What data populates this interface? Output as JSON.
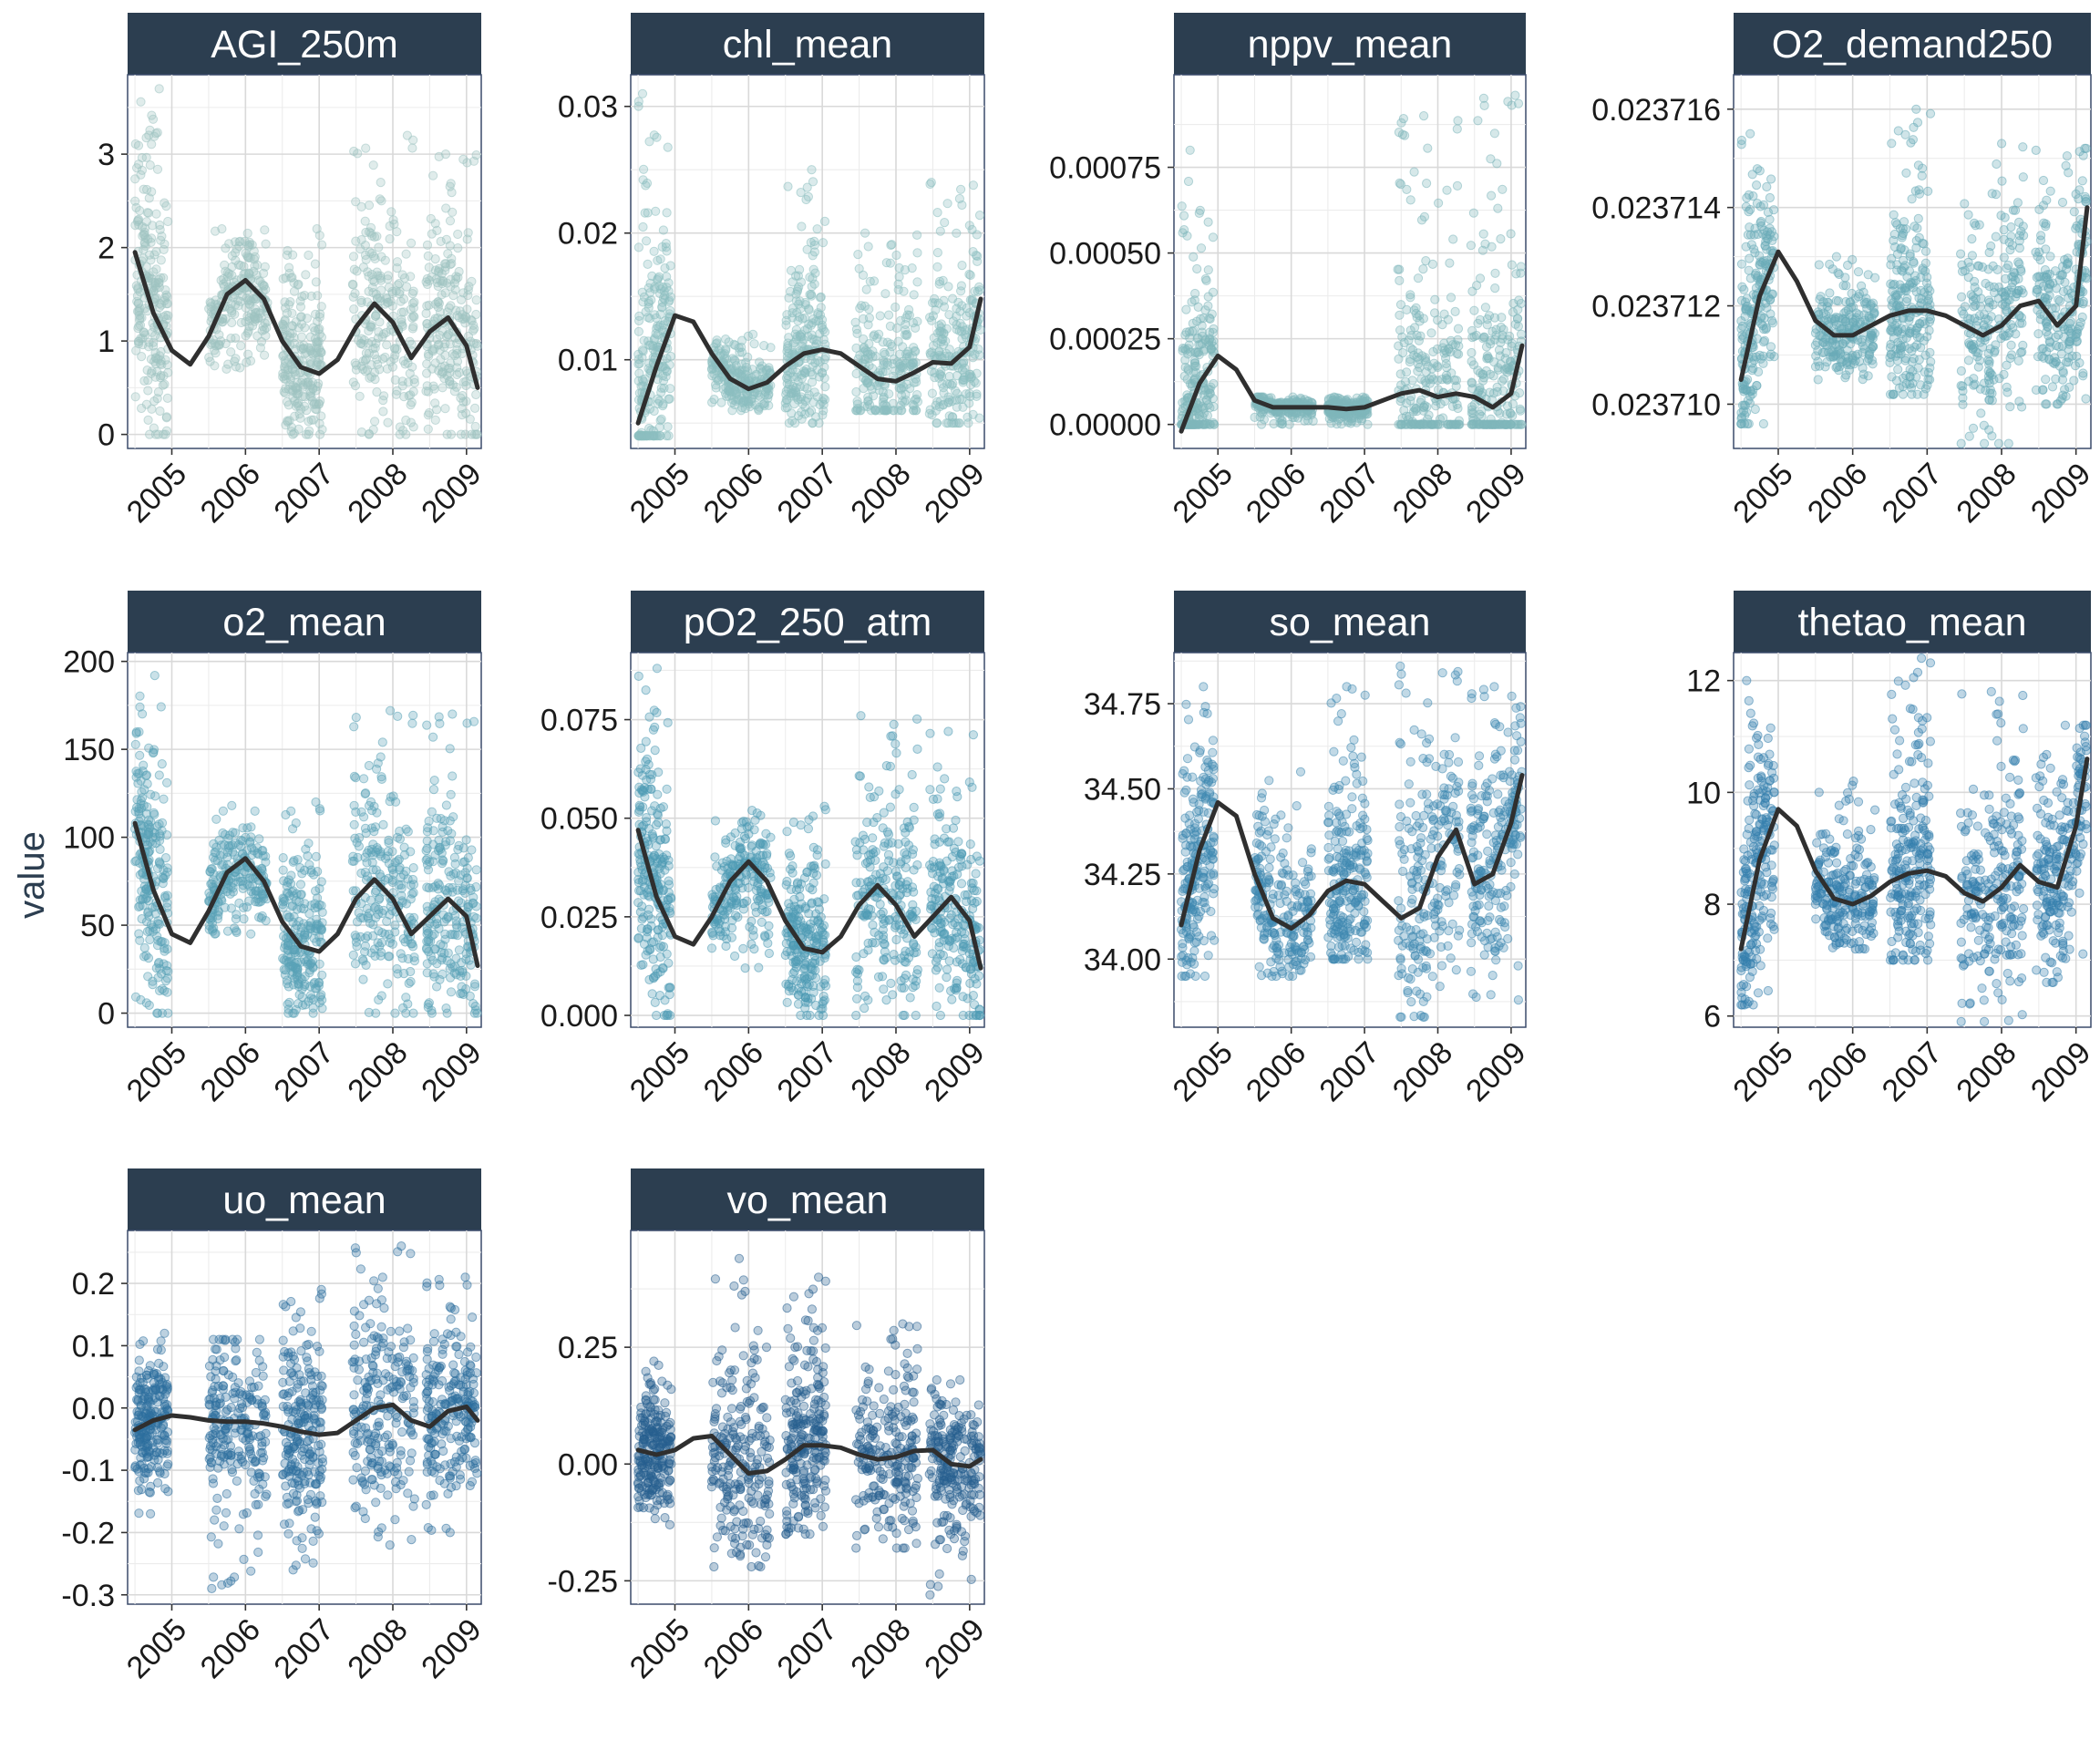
{
  "figure": {
    "y_axis_label": "value",
    "x_tick_labels": [
      "2005",
      "2006",
      "2007",
      "2008",
      "2009"
    ]
  },
  "chart_data": [
    {
      "type": "scatter",
      "title": "AGI_250m",
      "point_color": "#9fc3c1",
      "xlim": [
        2004.4,
        2009.2
      ],
      "ylim": [
        -0.15,
        3.85
      ],
      "y_ticks": [
        0,
        1,
        2,
        3
      ],
      "y_tick_labels": [
        "0",
        "1",
        "2",
        "3"
      ],
      "point_clusters": [
        {
          "x_start": 2004.5,
          "x_end": 2004.95,
          "y_low": 0.0,
          "y_high": 3.7
        },
        {
          "x_start": 2005.5,
          "x_end": 2006.3,
          "y_low": 0.7,
          "y_high": 2.2
        },
        {
          "x_start": 2006.5,
          "x_end": 2007.05,
          "y_low": 0.0,
          "y_high": 2.2
        },
        {
          "x_start": 2007.45,
          "x_end": 2008.3,
          "y_low": 0.0,
          "y_high": 3.2
        },
        {
          "x_start": 2008.45,
          "x_end": 2009.15,
          "y_low": 0.0,
          "y_high": 3.0
        }
      ],
      "smooth": {
        "x": [
          2004.5,
          2004.75,
          2005.0,
          2005.25,
          2005.5,
          2005.75,
          2006.0,
          2006.25,
          2006.5,
          2006.75,
          2007.0,
          2007.25,
          2007.5,
          2007.75,
          2008.0,
          2008.25,
          2008.5,
          2008.75,
          2009.0,
          2009.15
        ],
        "y": [
          1.95,
          1.3,
          0.9,
          0.75,
          1.05,
          1.5,
          1.65,
          1.45,
          1.0,
          0.72,
          0.65,
          0.8,
          1.15,
          1.4,
          1.2,
          0.82,
          1.1,
          1.25,
          0.95,
          0.5
        ]
      }
    },
    {
      "type": "scatter",
      "title": "chl_mean",
      "point_color": "#8cbfc0",
      "xlim": [
        2004.4,
        2009.2
      ],
      "ylim": [
        0.003,
        0.0325
      ],
      "y_ticks": [
        0.01,
        0.02,
        0.03
      ],
      "y_tick_labels": [
        "0.01",
        "0.02",
        "0.03"
      ],
      "point_clusters": [
        {
          "x_start": 2004.5,
          "x_end": 2004.95,
          "y_low": 0.004,
          "y_high": 0.031
        },
        {
          "x_start": 2005.5,
          "x_end": 2006.3,
          "y_low": 0.006,
          "y_high": 0.012
        },
        {
          "x_start": 2006.5,
          "x_end": 2007.05,
          "y_low": 0.005,
          "y_high": 0.025
        },
        {
          "x_start": 2007.45,
          "x_end": 2008.3,
          "y_low": 0.006,
          "y_high": 0.02
        },
        {
          "x_start": 2008.45,
          "x_end": 2009.15,
          "y_low": 0.005,
          "y_high": 0.024
        }
      ],
      "smooth": {
        "x": [
          2004.5,
          2004.75,
          2005.0,
          2005.25,
          2005.5,
          2005.75,
          2006.0,
          2006.25,
          2006.5,
          2006.75,
          2007.0,
          2007.25,
          2007.5,
          2007.75,
          2008.0,
          2008.25,
          2008.5,
          2008.75,
          2009.0,
          2009.15
        ],
        "y": [
          0.005,
          0.0095,
          0.0135,
          0.013,
          0.0105,
          0.0085,
          0.0077,
          0.0082,
          0.0095,
          0.0105,
          0.0108,
          0.0105,
          0.0095,
          0.0085,
          0.0083,
          0.009,
          0.0098,
          0.0097,
          0.011,
          0.0148
        ]
      }
    },
    {
      "type": "scatter",
      "title": "nppv_mean",
      "point_color": "#7fb7bc",
      "xlim": [
        2004.4,
        2009.2
      ],
      "ylim": [
        -7e-05,
        0.00102
      ],
      "y_ticks": [
        0,
        0.00025,
        0.0005,
        0.00075
      ],
      "y_tick_labels": [
        "0.00000",
        "0.00025",
        "0.00050",
        "0.00075"
      ],
      "point_clusters": [
        {
          "x_start": 2004.5,
          "x_end": 2004.95,
          "y_low": 0.0,
          "y_high": 0.0008
        },
        {
          "x_start": 2005.5,
          "x_end": 2006.3,
          "y_low": 0.0,
          "y_high": 8e-05
        },
        {
          "x_start": 2006.5,
          "x_end": 2007.05,
          "y_low": 0.0,
          "y_high": 8e-05
        },
        {
          "x_start": 2007.45,
          "x_end": 2008.3,
          "y_low": 0.0,
          "y_high": 0.0009
        },
        {
          "x_start": 2008.45,
          "x_end": 2009.15,
          "y_low": 0.0,
          "y_high": 0.00096
        }
      ],
      "smooth": {
        "x": [
          2004.5,
          2004.75,
          2005.0,
          2005.25,
          2005.5,
          2005.75,
          2006.0,
          2006.25,
          2006.5,
          2006.75,
          2007.0,
          2007.25,
          2007.5,
          2007.75,
          2008.0,
          2008.25,
          2008.5,
          2008.75,
          2009.0,
          2009.15
        ],
        "y": [
          -2e-05,
          0.00012,
          0.0002,
          0.00016,
          7e-05,
          5e-05,
          5e-05,
          5e-05,
          5e-05,
          4.5e-05,
          5e-05,
          7e-05,
          9e-05,
          0.0001,
          8e-05,
          9e-05,
          8e-05,
          5e-05,
          9e-05,
          0.00023
        ]
      }
    },
    {
      "type": "scatter",
      "title": "O2_demand250",
      "point_color": "#6aabb8",
      "xlim": [
        2004.4,
        2009.2
      ],
      "ylim": [
        0.0237091,
        0.0237167
      ],
      "y_ticks": [
        0.02371,
        0.023712,
        0.023714,
        0.023716
      ],
      "y_tick_labels": [
        "0.023710",
        "0.023712",
        "0.023714",
        "0.023716"
      ],
      "point_clusters": [
        {
          "x_start": 2004.5,
          "x_end": 2004.95,
          "y_low": 0.0237096,
          "y_high": 0.0237155
        },
        {
          "x_start": 2005.5,
          "x_end": 2006.3,
          "y_low": 0.0237105,
          "y_high": 0.023713
        },
        {
          "x_start": 2006.5,
          "x_end": 2007.05,
          "y_low": 0.0237102,
          "y_high": 0.023716
        },
        {
          "x_start": 2007.45,
          "x_end": 2008.3,
          "y_low": 0.0237092,
          "y_high": 0.0237153
        },
        {
          "x_start": 2008.45,
          "x_end": 2009.15,
          "y_low": 0.02371,
          "y_high": 0.0237152
        }
      ],
      "smooth": {
        "x": [
          2004.5,
          2004.75,
          2005.0,
          2005.25,
          2005.5,
          2005.75,
          2006.0,
          2006.25,
          2006.5,
          2006.75,
          2007.0,
          2007.25,
          2007.5,
          2007.75,
          2008.0,
          2008.25,
          2008.5,
          2008.75,
          2009.0,
          2009.15
        ],
        "y": [
          0.0237105,
          0.0237122,
          0.0237131,
          0.0237125,
          0.0237117,
          0.0237114,
          0.0237114,
          0.0237116,
          0.0237118,
          0.0237119,
          0.0237119,
          0.0237118,
          0.0237116,
          0.0237114,
          0.0237116,
          0.023712,
          0.0237121,
          0.0237116,
          0.023712,
          0.023714
        ]
      }
    },
    {
      "type": "scatter",
      "title": "o2_mean",
      "point_color": "#59a3b6",
      "xlim": [
        2004.4,
        2009.2
      ],
      "ylim": [
        -8,
        205
      ],
      "y_ticks": [
        0,
        50,
        100,
        150,
        200
      ],
      "y_tick_labels": [
        "0",
        "50",
        "100",
        "150",
        "200"
      ],
      "point_clusters": [
        {
          "x_start": 2004.5,
          "x_end": 2004.95,
          "y_low": 0,
          "y_high": 192
        },
        {
          "x_start": 2005.5,
          "x_end": 2006.3,
          "y_low": 45,
          "y_high": 118
        },
        {
          "x_start": 2006.5,
          "x_end": 2007.05,
          "y_low": 0,
          "y_high": 120
        },
        {
          "x_start": 2007.45,
          "x_end": 2008.3,
          "y_low": 0,
          "y_high": 172
        },
        {
          "x_start": 2008.45,
          "x_end": 2009.15,
          "y_low": 0,
          "y_high": 170
        }
      ],
      "smooth": {
        "x": [
          2004.5,
          2004.75,
          2005.0,
          2005.25,
          2005.5,
          2005.75,
          2006.0,
          2006.25,
          2006.5,
          2006.75,
          2007.0,
          2007.25,
          2007.5,
          2007.75,
          2008.0,
          2008.25,
          2008.5,
          2008.75,
          2009.0,
          2009.15
        ],
        "y": [
          108,
          70,
          45,
          40,
          58,
          80,
          88,
          75,
          52,
          38,
          35,
          45,
          65,
          76,
          65,
          45,
          55,
          65,
          55,
          27
        ]
      }
    },
    {
      "type": "scatter",
      "title": "pO2_250_atm",
      "point_color": "#4f9ab4",
      "xlim": [
        2004.4,
        2009.2
      ],
      "ylim": [
        -0.003,
        0.092
      ],
      "y_ticks": [
        0,
        0.025,
        0.05,
        0.075
      ],
      "y_tick_labels": [
        "0.000",
        "0.025",
        "0.050",
        "0.075"
      ],
      "point_clusters": [
        {
          "x_start": 2004.5,
          "x_end": 2004.95,
          "y_low": 0.0,
          "y_high": 0.088
        },
        {
          "x_start": 2005.5,
          "x_end": 2006.3,
          "y_low": 0.012,
          "y_high": 0.052
        },
        {
          "x_start": 2006.5,
          "x_end": 2007.05,
          "y_low": 0.0,
          "y_high": 0.053
        },
        {
          "x_start": 2007.45,
          "x_end": 2008.3,
          "y_low": 0.0,
          "y_high": 0.076
        },
        {
          "x_start": 2008.45,
          "x_end": 2009.15,
          "y_low": 0.0,
          "y_high": 0.072
        }
      ],
      "smooth": {
        "x": [
          2004.5,
          2004.75,
          2005.0,
          2005.25,
          2005.5,
          2005.75,
          2006.0,
          2006.25,
          2006.5,
          2006.75,
          2007.0,
          2007.25,
          2007.5,
          2007.75,
          2008.0,
          2008.25,
          2008.5,
          2008.75,
          2009.0,
          2009.15
        ],
        "y": [
          0.047,
          0.03,
          0.02,
          0.018,
          0.025,
          0.034,
          0.039,
          0.034,
          0.024,
          0.017,
          0.016,
          0.02,
          0.028,
          0.033,
          0.028,
          0.02,
          0.025,
          0.03,
          0.024,
          0.012
        ]
      }
    },
    {
      "type": "scatter",
      "title": "so_mean",
      "point_color": "#3f88b0",
      "xlim": [
        2004.4,
        2009.2
      ],
      "ylim": [
        33.8,
        34.9
      ],
      "y_ticks": [
        34.0,
        34.25,
        34.5,
        34.75
      ],
      "y_tick_labels": [
        "34.00",
        "34.25",
        "34.50",
        "34.75"
      ],
      "point_clusters": [
        {
          "x_start": 2004.5,
          "x_end": 2004.95,
          "y_low": 33.95,
          "y_high": 34.8
        },
        {
          "x_start": 2005.5,
          "x_end": 2006.3,
          "y_low": 33.95,
          "y_high": 34.55
        },
        {
          "x_start": 2006.5,
          "x_end": 2007.05,
          "y_low": 34.0,
          "y_high": 34.8
        },
        {
          "x_start": 2007.45,
          "x_end": 2008.3,
          "y_low": 33.83,
          "y_high": 34.86
        },
        {
          "x_start": 2008.45,
          "x_end": 2009.15,
          "y_low": 33.88,
          "y_high": 34.8
        }
      ],
      "smooth": {
        "x": [
          2004.5,
          2004.75,
          2005.0,
          2005.25,
          2005.5,
          2005.75,
          2006.0,
          2006.25,
          2006.5,
          2006.75,
          2007.0,
          2007.25,
          2007.5,
          2007.75,
          2008.0,
          2008.25,
          2008.5,
          2008.75,
          2009.0,
          2009.15
        ],
        "y": [
          34.1,
          34.32,
          34.46,
          34.42,
          34.25,
          34.12,
          34.09,
          34.13,
          34.2,
          34.23,
          34.22,
          34.17,
          34.12,
          34.15,
          34.3,
          34.38,
          34.22,
          34.25,
          34.4,
          34.54
        ]
      }
    },
    {
      "type": "scatter",
      "title": "thetao_mean",
      "point_color": "#3580ad",
      "xlim": [
        2004.4,
        2009.2
      ],
      "ylim": [
        5.8,
        12.5
      ],
      "y_ticks": [
        6,
        8,
        10,
        12
      ],
      "y_tick_labels": [
        "6",
        "8",
        "10",
        "12"
      ],
      "point_clusters": [
        {
          "x_start": 2004.5,
          "x_end": 2004.95,
          "y_low": 6.2,
          "y_high": 12.0
        },
        {
          "x_start": 2005.5,
          "x_end": 2006.3,
          "y_low": 7.2,
          "y_high": 10.2
        },
        {
          "x_start": 2006.5,
          "x_end": 2007.05,
          "y_low": 7.0,
          "y_high": 12.4
        },
        {
          "x_start": 2007.45,
          "x_end": 2008.3,
          "y_low": 5.9,
          "y_high": 11.8
        },
        {
          "x_start": 2008.45,
          "x_end": 2009.15,
          "y_low": 6.6,
          "y_high": 11.2
        }
      ],
      "smooth": {
        "x": [
          2004.5,
          2004.75,
          2005.0,
          2005.25,
          2005.5,
          2005.75,
          2006.0,
          2006.25,
          2006.5,
          2006.75,
          2007.0,
          2007.25,
          2007.5,
          2007.75,
          2008.0,
          2008.25,
          2008.5,
          2008.75,
          2009.0,
          2009.15
        ],
        "y": [
          7.2,
          8.8,
          9.7,
          9.4,
          8.6,
          8.1,
          8.0,
          8.15,
          8.4,
          8.55,
          8.6,
          8.5,
          8.2,
          8.05,
          8.3,
          8.7,
          8.4,
          8.3,
          9.4,
          10.6
        ]
      }
    },
    {
      "type": "scatter",
      "title": "uo_mean",
      "point_color": "#2e6f9e",
      "xlim": [
        2004.4,
        2009.2
      ],
      "ylim": [
        -0.315,
        0.285
      ],
      "y_ticks": [
        -0.3,
        -0.2,
        -0.1,
        0.0,
        0.1,
        0.2
      ],
      "y_tick_labels": [
        "-0.3",
        "-0.2",
        "-0.1",
        "0.0",
        "0.1",
        "0.2"
      ],
      "point_clusters": [
        {
          "x_start": 2004.5,
          "x_end": 2004.95,
          "y_low": -0.17,
          "y_high": 0.12
        },
        {
          "x_start": 2005.5,
          "x_end": 2006.3,
          "y_low": -0.29,
          "y_high": 0.11
        },
        {
          "x_start": 2006.5,
          "x_end": 2007.05,
          "y_low": -0.26,
          "y_high": 0.19
        },
        {
          "x_start": 2007.45,
          "x_end": 2008.3,
          "y_low": -0.22,
          "y_high": 0.26
        },
        {
          "x_start": 2008.45,
          "x_end": 2009.15,
          "y_low": -0.2,
          "y_high": 0.21
        }
      ],
      "smooth": {
        "x": [
          2004.5,
          2004.75,
          2005.0,
          2005.25,
          2005.5,
          2005.75,
          2006.0,
          2006.25,
          2006.5,
          2006.75,
          2007.0,
          2007.25,
          2007.5,
          2007.75,
          2008.0,
          2008.25,
          2008.5,
          2008.75,
          2009.0,
          2009.15
        ],
        "y": [
          -0.035,
          -0.02,
          -0.012,
          -0.015,
          -0.02,
          -0.022,
          -0.022,
          -0.025,
          -0.03,
          -0.038,
          -0.043,
          -0.04,
          -0.02,
          0.0,
          0.005,
          -0.02,
          -0.03,
          -0.005,
          0.002,
          -0.02
        ]
      }
    },
    {
      "type": "scatter",
      "title": "vo_mean",
      "point_color": "#275f8f",
      "xlim": [
        2004.4,
        2009.2
      ],
      "ylim": [
        -0.3,
        0.5
      ],
      "y_ticks": [
        -0.25,
        0.0,
        0.25
      ],
      "y_tick_labels": [
        "-0.25",
        "0.00",
        "0.25"
      ],
      "point_clusters": [
        {
          "x_start": 2004.5,
          "x_end": 2004.95,
          "y_low": -0.13,
          "y_high": 0.22
        },
        {
          "x_start": 2005.5,
          "x_end": 2006.3,
          "y_low": -0.22,
          "y_high": 0.44
        },
        {
          "x_start": 2006.5,
          "x_end": 2007.05,
          "y_low": -0.15,
          "y_high": 0.4
        },
        {
          "x_start": 2007.45,
          "x_end": 2008.3,
          "y_low": -0.18,
          "y_high": 0.3
        },
        {
          "x_start": 2008.45,
          "x_end": 2009.15,
          "y_low": -0.28,
          "y_high": 0.18
        }
      ],
      "smooth": {
        "x": [
          2004.5,
          2004.75,
          2005.0,
          2005.25,
          2005.5,
          2005.75,
          2006.0,
          2006.25,
          2006.5,
          2006.75,
          2007.0,
          2007.25,
          2007.5,
          2007.75,
          2008.0,
          2008.25,
          2008.5,
          2008.75,
          2009.0,
          2009.15
        ],
        "y": [
          0.03,
          0.02,
          0.03,
          0.055,
          0.06,
          0.02,
          -0.02,
          -0.015,
          0.01,
          0.04,
          0.04,
          0.035,
          0.02,
          0.01,
          0.015,
          0.028,
          0.03,
          0.0,
          -0.005,
          0.01
        ]
      }
    }
  ]
}
